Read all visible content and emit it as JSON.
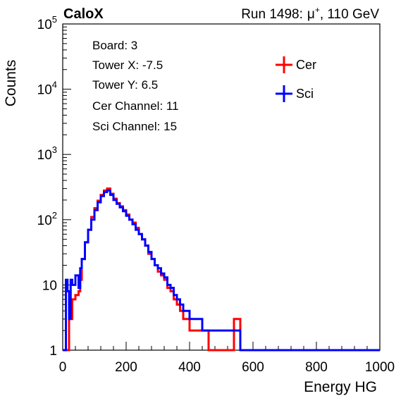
{
  "header": {
    "left_title": "CaloX",
    "right_title_prefix": "Run 1498:",
    "particle": "μ",
    "particle_sup": "+",
    "energy": ", 110 GeV"
  },
  "info_box": {
    "lines": [
      "Board: 3",
      "Tower X: -7.5",
      "Tower Y: 6.5",
      "Cer Channel: 11",
      "Sci Channel: 15"
    ]
  },
  "legend": {
    "entries": [
      {
        "label": "Cer",
        "color": "#ff0000"
      },
      {
        "label": "Sci",
        "color": "#0000ff"
      }
    ]
  },
  "chart_data": {
    "type": "line",
    "xlabel": "Energy HG",
    "ylabel": "Counts",
    "xlim": [
      0,
      1000
    ],
    "ylim": [
      1,
      100000
    ],
    "y_scale": "log",
    "x_ticks": [
      0,
      200,
      400,
      600,
      800,
      1000
    ],
    "y_ticks": [
      {
        "value": 1,
        "label": "1"
      },
      {
        "value": 10,
        "label": "10"
      },
      {
        "value": 100,
        "label": "10",
        "sup": "2"
      },
      {
        "value": 1000,
        "label": "10",
        "sup": "3"
      },
      {
        "value": 10000,
        "label": "10",
        "sup": "4"
      },
      {
        "value": 100000,
        "label": "10",
        "sup": "5"
      }
    ],
    "series": [
      {
        "name": "Cer",
        "color": "#ff0000",
        "x": [
          0,
          10,
          20,
          25,
          30,
          40,
          50,
          55,
          60,
          70,
          80,
          90,
          100,
          110,
          120,
          130,
          140,
          150,
          160,
          170,
          180,
          190,
          200,
          210,
          220,
          230,
          240,
          250,
          260,
          270,
          280,
          290,
          300,
          310,
          320,
          330,
          340,
          350,
          360,
          370,
          380,
          390,
          400,
          420,
          440,
          460,
          480,
          500,
          520,
          540,
          560,
          600,
          700,
          800,
          900,
          1000
        ],
        "y": [
          1,
          1,
          4,
          3,
          6,
          7,
          8,
          12,
          25,
          45,
          70,
          110,
          150,
          195,
          240,
          280,
          300,
          250,
          210,
          180,
          160,
          140,
          120,
          100,
          90,
          75,
          60,
          50,
          40,
          30,
          25,
          20,
          16,
          14,
          12,
          9,
          8,
          6,
          5,
          4,
          3,
          3,
          2,
          2,
          2,
          1,
          1,
          1,
          1,
          3,
          1,
          1,
          1,
          1,
          1,
          1
        ]
      },
      {
        "name": "Sci",
        "color": "#0000ff",
        "x": [
          0,
          10,
          15,
          20,
          25,
          30,
          40,
          50,
          55,
          60,
          70,
          80,
          90,
          100,
          110,
          120,
          130,
          140,
          150,
          160,
          170,
          180,
          190,
          200,
          210,
          220,
          230,
          240,
          250,
          260,
          270,
          280,
          290,
          300,
          310,
          320,
          330,
          340,
          350,
          360,
          370,
          380,
          390,
          400,
          420,
          440,
          460,
          480,
          500,
          520,
          540,
          560,
          600,
          700,
          800,
          900,
          1000
        ],
        "y": [
          1,
          12,
          8,
          3,
          12,
          10,
          14,
          9,
          18,
          25,
          45,
          70,
          100,
          140,
          185,
          230,
          265,
          280,
          240,
          200,
          175,
          155,
          135,
          115,
          100,
          85,
          70,
          60,
          50,
          40,
          32,
          25,
          20,
          18,
          15,
          13,
          10,
          9,
          7,
          6,
          5,
          4,
          4,
          3,
          3,
          2,
          2,
          2,
          2,
          2,
          2,
          1,
          1,
          1,
          1,
          1,
          1
        ]
      }
    ]
  }
}
